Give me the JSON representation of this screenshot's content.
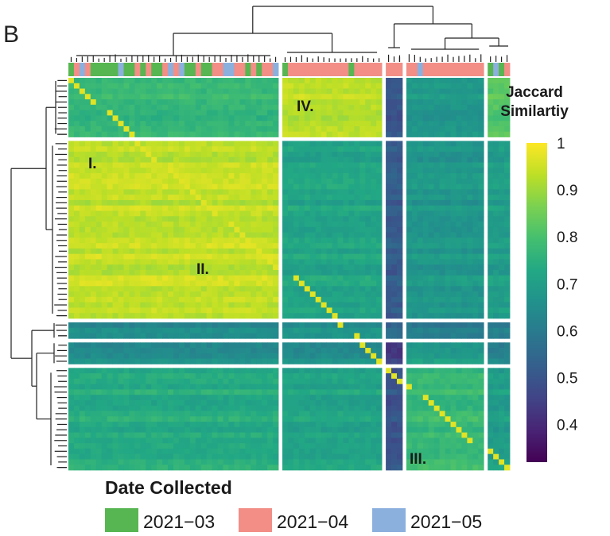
{
  "panel_label": "B",
  "chart_data": {
    "type": "heatmap",
    "title": "",
    "xlabel": "",
    "ylabel": "",
    "value_range": [
      0.32,
      1
    ],
    "colorbar": {
      "title_line1": "Jaccard",
      "title_line2": "Similartiy",
      "ticks": [
        1,
        0.9,
        0.8,
        0.7,
        0.6,
        0.5,
        0.4
      ],
      "tick_labels": [
        "1",
        "0.9",
        "0.8",
        "0.7",
        "0.6",
        "0.5",
        "0.4"
      ],
      "colormap": "viridis"
    },
    "clusters": {
      "column_groups": [
        {
          "size": 38,
          "dominant": "mixed-03-04"
        },
        {
          "size": 18,
          "dominant": "04"
        },
        {
          "size": 3,
          "dominant": "05"
        },
        {
          "size": 14,
          "dominant": "04"
        },
        {
          "size": 4,
          "dominant": "mixed"
        }
      ],
      "row_groups": [
        {
          "size": 11
        },
        {
          "size": 33
        },
        {
          "size": 3
        },
        {
          "size": 4
        },
        {
          "size": 19
        }
      ],
      "block_means": [
        [
          0.77,
          0.93,
          0.5,
          0.68,
          0.82
        ],
        [
          0.94,
          0.72,
          0.52,
          0.68,
          0.7
        ],
        [
          0.64,
          0.66,
          0.55,
          0.6,
          0.6
        ],
        [
          0.66,
          0.66,
          0.45,
          0.7,
          0.63
        ],
        [
          0.74,
          0.72,
          0.5,
          0.78,
          0.7
        ]
      ]
    },
    "annotations": [
      {
        "label": "I.",
        "description": "high-similarity block, rows group 2 / columns group 1"
      },
      {
        "label": "II.",
        "description": "diagonal sub-block within group 2"
      },
      {
        "label": "III.",
        "description": "block at rows group 5 / columns group 4"
      },
      {
        "label": "IV.",
        "description": "block at rows group 1 / columns group 2"
      }
    ],
    "legend": {
      "title": "Date Collected",
      "position": "bottom",
      "entries": [
        {
          "label": "2021−03",
          "color": "#57b651"
        },
        {
          "label": "2021−04",
          "color": "#f28e86"
        },
        {
          "label": "2021−05",
          "color": "#8bb0de"
        }
      ]
    },
    "grid": false
  }
}
